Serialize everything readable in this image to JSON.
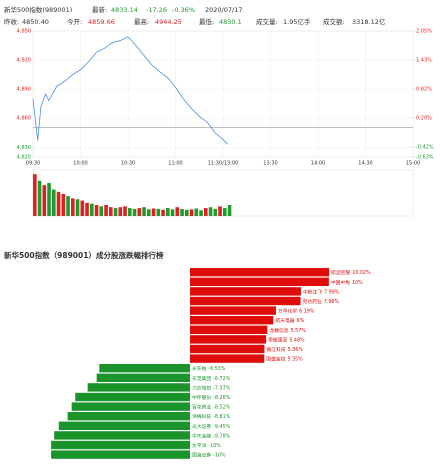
{
  "header": {
    "name": "新华500指数(989001)",
    "latest_label": "最新:",
    "latest": "4833.14",
    "change": "-17.26",
    "change_pct": "-0.36%",
    "date": "2020/07/17",
    "prev_close_label": "昨收:",
    "prev_close": "4850.40",
    "open_label": "今开:",
    "open": "4859.66",
    "high_label": "最高:",
    "high": "4944.25",
    "low_label": "最低:",
    "low": "4830.1",
    "volume_label": "成交量:",
    "volume": "1.95亿手",
    "amount_label": "成交额:",
    "amount": "3318.12亿"
  },
  "chart_data": [
    {
      "type": "line",
      "color": "#4a90d9",
      "baseline": 4850.4,
      "x": [
        0,
        3,
        5,
        8,
        10,
        15,
        20,
        25,
        30,
        35,
        40,
        45,
        50,
        55,
        60,
        65,
        70,
        75,
        80,
        85,
        90,
        95,
        100,
        105,
        110,
        115,
        120,
        123
      ],
      "values": [
        4880,
        4837,
        4872,
        4885,
        4878,
        4893,
        4898,
        4905,
        4910,
        4918,
        4928,
        4932,
        4938,
        4940,
        4944,
        4935,
        4925,
        4915,
        4908,
        4902,
        4892,
        4880,
        4870,
        4862,
        4856,
        4845,
        4838,
        4833.14
      ],
      "xlim": [
        0,
        240
      ],
      "xticks": [
        {
          "value": 0,
          "label": "09:30"
        },
        {
          "value": 30,
          "label": "10:00"
        },
        {
          "value": 60,
          "label": "10:30"
        },
        {
          "value": 90,
          "label": "11:00"
        },
        {
          "value": 120,
          "label": "11:30/13:00"
        },
        {
          "value": 150,
          "label": "13:30"
        },
        {
          "value": 180,
          "label": "14:00"
        },
        {
          "value": 210,
          "label": "14:30"
        },
        {
          "value": 240,
          "label": "15:00"
        }
      ],
      "ylim": [
        4820,
        4950
      ],
      "yticks": [
        {
          "value": 4820,
          "label": "4,820"
        },
        {
          "value": 4830,
          "label": "4,830"
        },
        {
          "value": 4860,
          "label": "4,860"
        },
        {
          "value": 4890,
          "label": "4,890"
        },
        {
          "value": 4920,
          "label": "4,920"
        },
        {
          "value": 4950,
          "label": "4,950"
        }
      ],
      "y2lim": [
        -0.63,
        2.05
      ],
      "y2ticks": [
        {
          "value": -0.63,
          "label": "-0.63%"
        },
        {
          "value": -0.42,
          "label": "-0.42%"
        },
        {
          "value": 0.2,
          "label": "0.20%"
        },
        {
          "value": 0.82,
          "label": "0.82%"
        },
        {
          "value": 1.43,
          "label": "1.43%"
        },
        {
          "value": 2.05,
          "label": "2.05%"
        }
      ],
      "up_color": "#e02020",
      "down_color": "#1f9a2f",
      "grid": true
    },
    {
      "type": "volume",
      "xlim": [
        0,
        240
      ],
      "ylim": [
        0,
        100
      ],
      "x": [
        0,
        3,
        6,
        9,
        12,
        15,
        18,
        21,
        24,
        27,
        30,
        33,
        36,
        39,
        42,
        45,
        48,
        51,
        54,
        57,
        60,
        63,
        66,
        69,
        72,
        75,
        78,
        81,
        84,
        87,
        90,
        93,
        96,
        99,
        102,
        105,
        108,
        111,
        114,
        117,
        120,
        123
      ],
      "values": [
        95,
        80,
        70,
        75,
        60,
        55,
        50,
        45,
        40,
        38,
        35,
        30,
        28,
        25,
        22,
        25,
        20,
        18,
        20,
        22,
        18,
        16,
        18,
        20,
        15,
        17,
        16,
        14,
        18,
        15,
        20,
        16,
        14,
        15,
        17,
        13,
        18,
        20,
        16,
        22,
        18,
        25
      ],
      "colors": [
        "#e02020",
        "#1f9a2f",
        "#e02020",
        "#1f9a2f",
        "#1f9a2f",
        "#e02020",
        "#e02020",
        "#1f9a2f",
        "#e02020",
        "#1f9a2f",
        "#e02020",
        "#e02020",
        "#1f9a2f",
        "#e02020",
        "#1f9a2f",
        "#e02020",
        "#e02020",
        "#1f9a2f",
        "#e02020",
        "#e02020",
        "#1f9a2f",
        "#1f9a2f",
        "#e02020",
        "#1f9a2f",
        "#1f9a2f",
        "#e02020",
        "#1f9a2f",
        "#e02020",
        "#1f9a2f",
        "#1f9a2f",
        "#e02020",
        "#1f9a2f",
        "#1f9a2f",
        "#e02020",
        "#1f9a2f",
        "#1f9a2f",
        "#e02020",
        "#1f9a2f",
        "#1f9a2f",
        "#e02020",
        "#1f9a2f",
        "#1f9a2f"
      ]
    },
    {
      "type": "hbar",
      "title": "新华500指数（989001）成分股涨跌幅排行榜",
      "categories": [
        "航运控股",
        "中国中免",
        "中航沈飞",
        "完达药业",
        "万华化学",
        "航天电器",
        "龙蟠信息",
        "荣耀康亚",
        "振江科技",
        "国盛金控",
        "长东柏",
        "天茂集团",
        "力达规划",
        "中环股份",
        "百花药业",
        "洪梅科技",
        "光大证券",
        "中天金融",
        "太平洋",
        "国海证券"
      ],
      "values": [
        10.02,
        10,
        7.99,
        7.96,
        6.19,
        6,
        5.57,
        5.48,
        5.36,
        5.35,
        -6.53,
        -6.72,
        -7.37,
        -8.26,
        -8.52,
        -8.81,
        -9.45,
        -9.78,
        -10,
        -10
      ],
      "value_labels": [
        "10.02%",
        "10%",
        "7.99%",
        "7.96%",
        "6.19%",
        "6%",
        "5.57%",
        "5.48%",
        "5.36%",
        "5.35%",
        "-6.53%",
        "-6.72%",
        "-7.37%",
        "-8.26%",
        "-8.52%",
        "-8.81%",
        "-9.45%",
        "-9.78%",
        "-10%",
        "-10%"
      ],
      "xlim": [
        -10.8,
        10.8
      ],
      "up_color": "#e00b0b",
      "down_color": "#1a932b"
    }
  ]
}
